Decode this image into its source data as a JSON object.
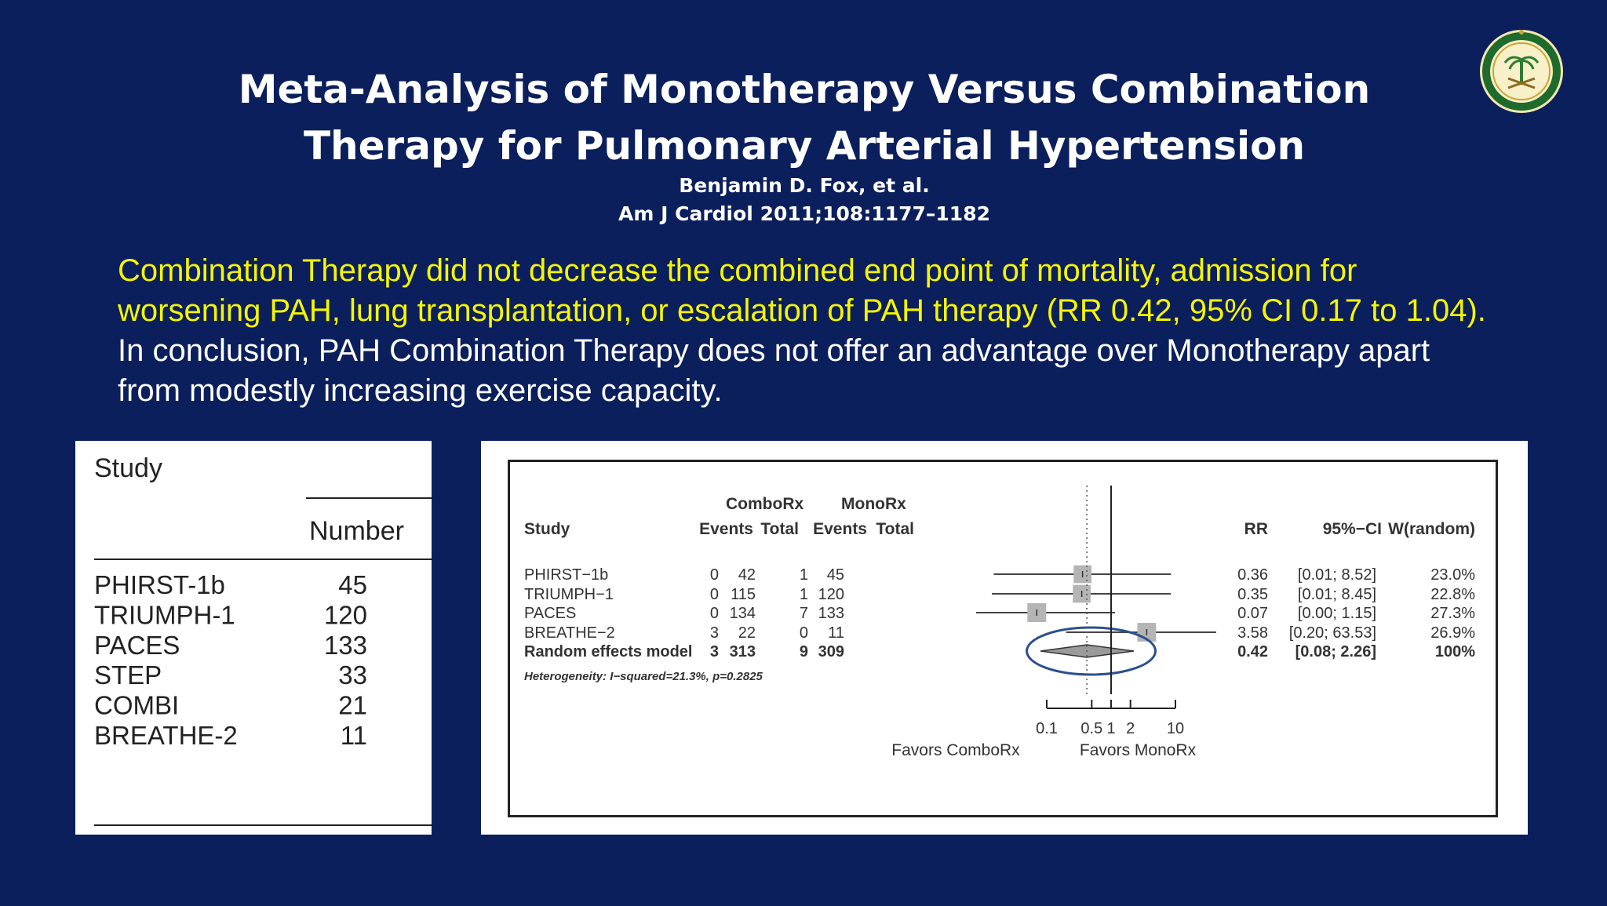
{
  "slide": {
    "title": "Meta-Analysis of Monotherapy Versus Combination Therapy for Pulmonary Arterial Hypertension",
    "author": "Benjamin D. Fox, et al.",
    "citation": "Am J Cardiol 2011;108:1177–1182",
    "summary_highlight": "Combination Therapy did not decrease the combined end point of mortality, admission for worsening PAH, lung transplantation, or escalation of PAH therapy (RR 0.42, 95% CI 0.17 to 1.04).",
    "summary_rest": " In conclusion,  PAH Combination Therapy does not offer an advantage over Monotherapy apart from modestly increasing exercise capacity."
  },
  "study_table": {
    "header": "Study",
    "number_header": "Number",
    "rows": [
      {
        "study": "PHIRST-1b",
        "number": "45"
      },
      {
        "study": "TRIUMPH-1",
        "number": "120"
      },
      {
        "study": "PACES",
        "number": "133"
      },
      {
        "study": "STEP",
        "number": "33"
      },
      {
        "study": "COMBI",
        "number": "21"
      },
      {
        "study": "BREATHE-2",
        "number": "11"
      }
    ]
  },
  "forest": {
    "headers": {
      "study": "Study",
      "combo": "ComboRx",
      "mono": "MonoRx",
      "events": "Events",
      "total": "Total",
      "rr": "RR",
      "ci": "95%−CI",
      "weight": "W(random)"
    },
    "rows": [
      {
        "study": "PHIRST−1b",
        "combo_events": "0",
        "combo_total": "42",
        "mono_events": "1",
        "mono_total": "45",
        "rr": "0.36",
        "ci": "[0.01;  8.52]",
        "weight": "23.0%",
        "rr_value": 0.36,
        "lo": 0.015,
        "hi": 8.52
      },
      {
        "study": "TRIUMPH−1",
        "combo_events": "0",
        "combo_total": "115",
        "mono_events": "1",
        "mono_total": "120",
        "rr": "0.35",
        "ci": "[0.01;  8.45]",
        "weight": "22.8%",
        "rr_value": 0.35,
        "lo": 0.014,
        "hi": 8.45
      },
      {
        "study": "PACES",
        "combo_events": "0",
        "combo_total": "134",
        "mono_events": "7",
        "mono_total": "133",
        "rr": "0.07",
        "ci": "[0.00;  1.15]",
        "weight": "27.3%",
        "rr_value": 0.07,
        "lo": 0.004,
        "hi": 1.15
      },
      {
        "study": "BREATHE−2",
        "combo_events": "3",
        "combo_total": "22",
        "mono_events": "0",
        "mono_total": "11",
        "rr": "3.58",
        "ci": "[0.20; 63.53]",
        "weight": "26.9%",
        "rr_value": 3.58,
        "lo": 0.2,
        "hi": 63.53
      }
    ],
    "pooled": {
      "label": "Random effects model",
      "combo_events": "3",
      "combo_total": "313",
      "mono_events": "9",
      "mono_total": "309",
      "rr": "0.42",
      "ci": "[0.08;  2.26]",
      "weight": "100%",
      "rr_value": 0.42,
      "lo": 0.08,
      "hi": 2.26
    },
    "heterogeneity": "Heterogeneity: I−squared=21.3%, p=0.2825",
    "axis_ticks": [
      {
        "value": 0.1,
        "label": "0.1"
      },
      {
        "value": 0.5,
        "label": "0.5"
      },
      {
        "value": 1,
        "label": "1"
      },
      {
        "value": 2,
        "label": "2"
      },
      {
        "value": 10,
        "label": "10"
      }
    ],
    "favors_left": "Favors ComboRx",
    "favors_right": "Favors MonoRx",
    "axis_scale": "log",
    "colors": {
      "highlight_ellipse": "#2b4f8f",
      "box_fill": "#b5b5b5"
    }
  }
}
